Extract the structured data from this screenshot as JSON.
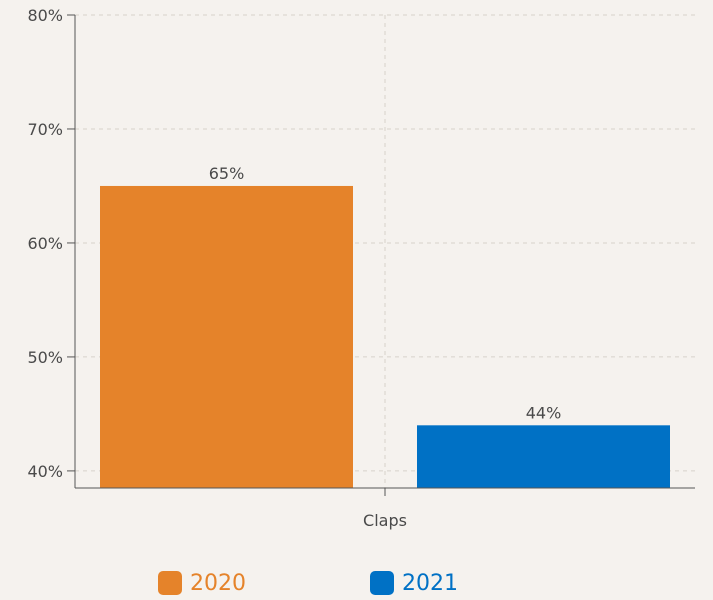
{
  "chart_data": {
    "type": "bar",
    "categories": [
      "Claps"
    ],
    "series": [
      {
        "name": "2020",
        "values": [
          65
        ],
        "value_label": "65%",
        "color": "#e5832a"
      },
      {
        "name": "2021",
        "values": [
          44
        ],
        "value_label": "44%",
        "color": "#0071c5"
      }
    ],
    "ylim": [
      38.5,
      80
    ],
    "yticks": [
      40,
      50,
      60,
      70,
      80
    ],
    "ytick_labels": [
      "40%",
      "50%",
      "60%",
      "70%",
      "80%"
    ],
    "x_tick_label": "Claps",
    "grid": true,
    "legend_position": "bottom",
    "axis_color": "#555555",
    "grid_color": "#d8d2cb",
    "text_color": "#4a4a4a"
  }
}
